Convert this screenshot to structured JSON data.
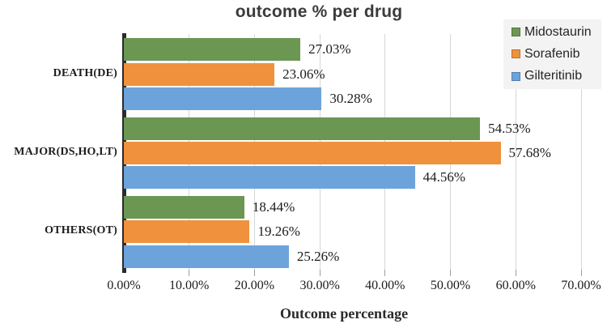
{
  "title": "outcome % per drug",
  "xlabel": "Outcome percentage",
  "chart_data": {
    "type": "bar",
    "orientation": "horizontal",
    "title": "outcome % per drug",
    "xlabel": "Outcome percentage",
    "categories": [
      "DEATH(DE)",
      "MAJOR(DS,HO,LT)",
      "OTHERS(OT)"
    ],
    "series": [
      {
        "name": "Midostaurin",
        "color": "#6b9752",
        "values": [
          27.03,
          54.53,
          18.44
        ]
      },
      {
        "name": "Sorafenib",
        "color": "#f0913d",
        "values": [
          23.06,
          57.68,
          19.26
        ]
      },
      {
        "name": "Gilteritinib",
        "color": "#6da3db",
        "values": [
          30.28,
          44.56,
          25.26
        ]
      }
    ],
    "data_labels": [
      "27.03%",
      "23.06%",
      "30.28%",
      "54.53%",
      "57.68%",
      "44.56%",
      "18.44%",
      "19.26%",
      "25.26%"
    ],
    "x_ticks": [
      "0.00%",
      "10.00%",
      "20.00%",
      "30.00%",
      "40.00%",
      "50.00%",
      "60.00%",
      "70.00%"
    ],
    "xlim": [
      0,
      70
    ],
    "grid": true,
    "legend_position": "top-right",
    "legend_entries": [
      "Midostaurin",
      "Sorafenib",
      "Gilteritinib"
    ]
  },
  "colors": {
    "midostaurin_green": "#6b9752",
    "sorafenib_orange": "#f0913d",
    "gilteritinib_blue": "#6da3db",
    "gridline": "#d6d6d6",
    "axis_line": "#2b2b2b",
    "title_text": "#3b3b3b",
    "label_text": "#1b1b1b",
    "legend_background": "#f3f3f3"
  }
}
